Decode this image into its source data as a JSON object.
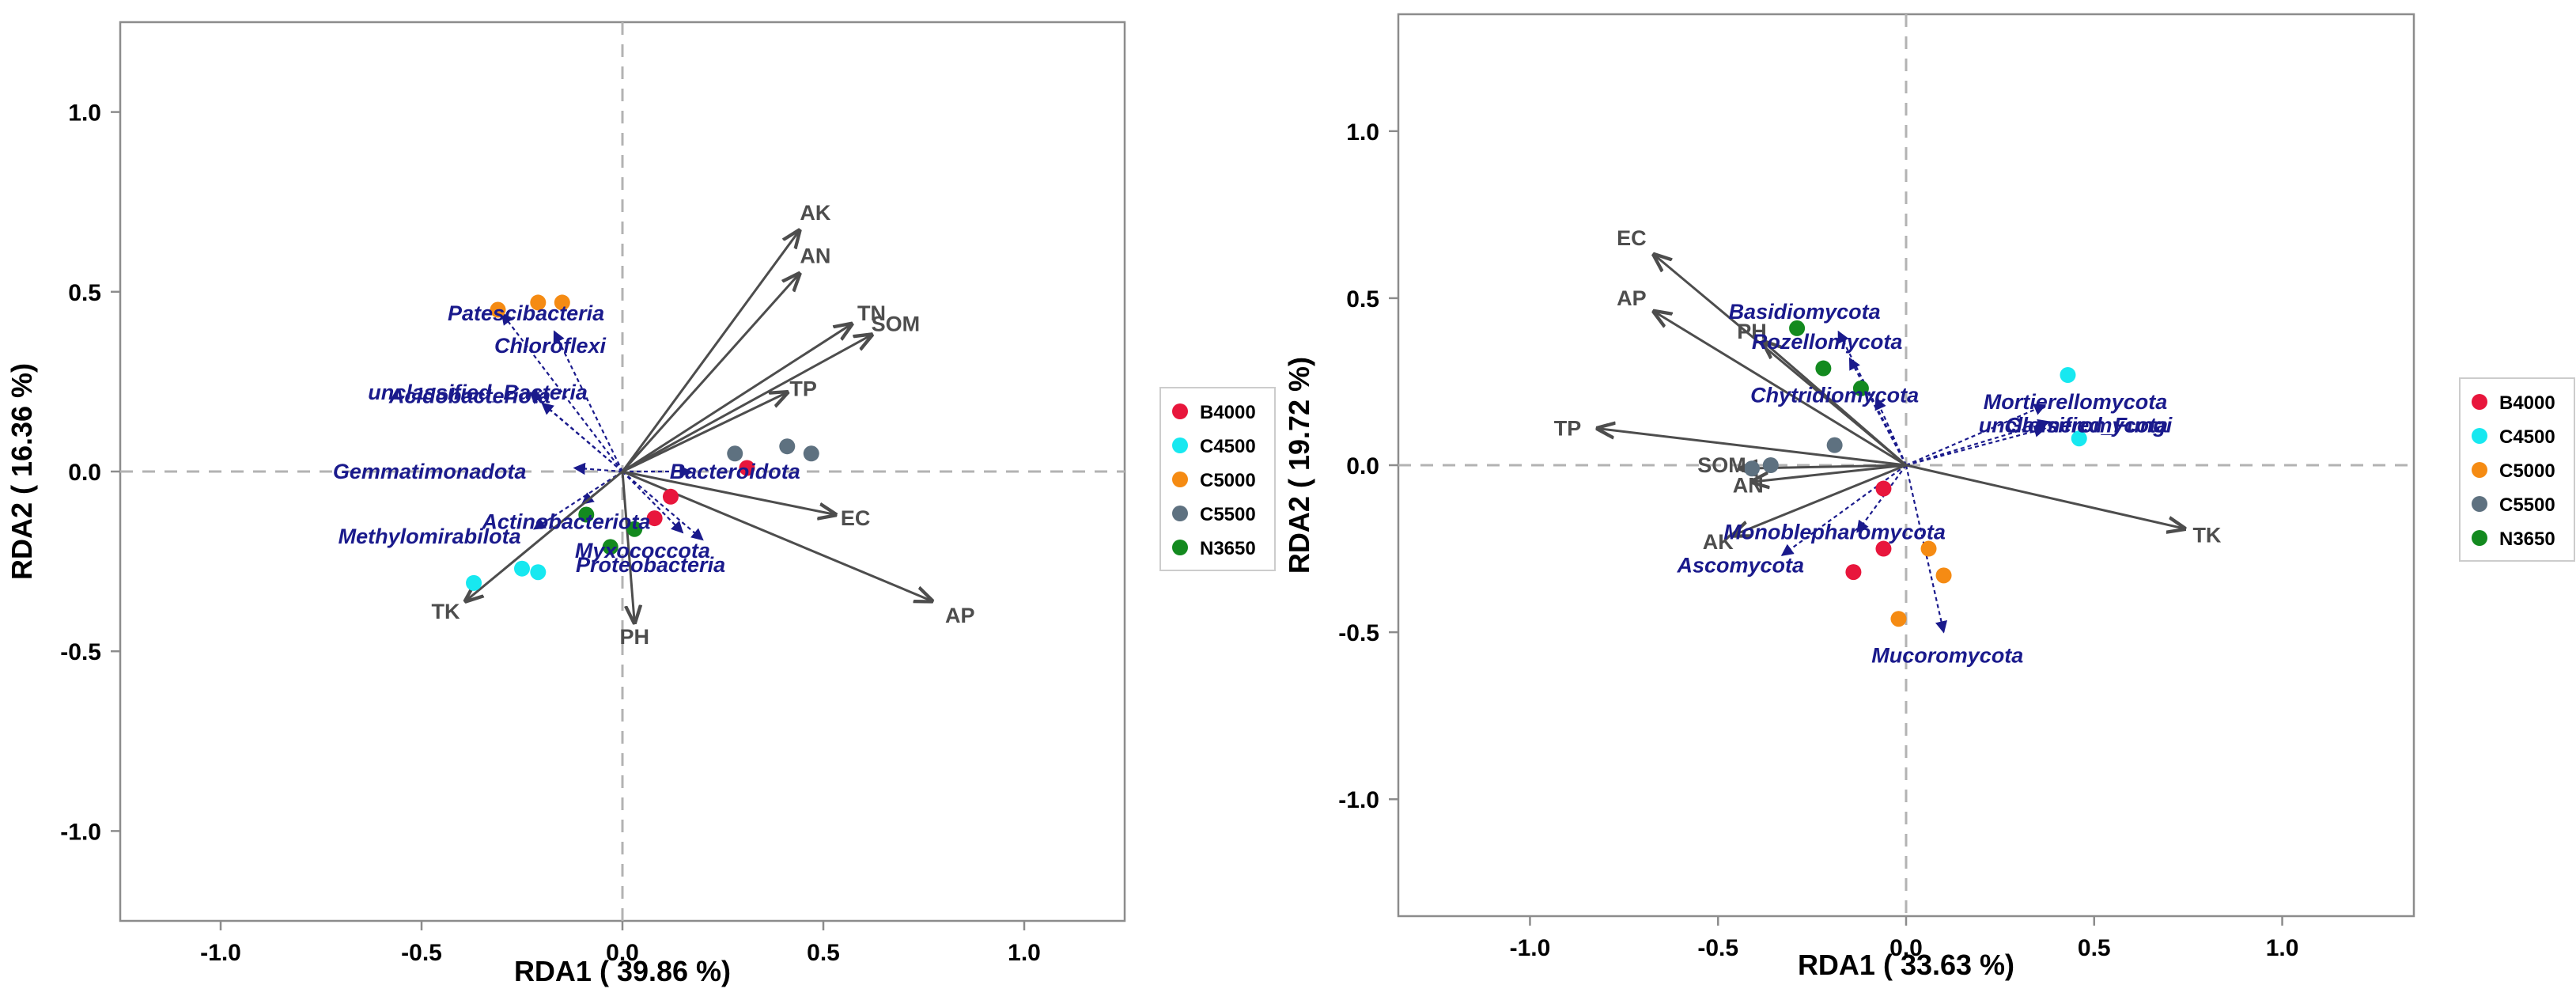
{
  "colors": {
    "groups": {
      "B4000": "#e8163c",
      "C4500": "#17e8f0",
      "C5000": "#f58b13",
      "C5500": "#5e7180",
      "N3650": "#138a1f"
    },
    "env_arrow": "#4d4d4d",
    "taxa_arrow": "#1a1a8c",
    "zero_line": "#b3b3b3",
    "frame": "#8c8c8c"
  },
  "chart_data": [
    {
      "type": "scatter",
      "subtype": "rda-biplot",
      "title": "",
      "xlabel": "RDA1 ( 39.86 %)",
      "ylabel": "RDA2 ( 16.36 %)",
      "xlim": [
        -1.25,
        1.25
      ],
      "ylim": [
        -1.25,
        1.25
      ],
      "xticks": [
        "-1.0",
        "-0.5",
        "0.0",
        "0.5",
        "1.0"
      ],
      "yticks": [
        "-1.0",
        "-0.5",
        "0.0",
        "0.5",
        "1.0"
      ],
      "tick_values": [
        -1.0,
        -0.5,
        0.0,
        0.5,
        1.0
      ],
      "legend": [
        "B4000",
        "C4500",
        "C5000",
        "C5500",
        "N3650"
      ],
      "legend_position": "right",
      "points": [
        {
          "group": "B4000",
          "x": 0.12,
          "y": -0.07
        },
        {
          "group": "B4000",
          "x": 0.08,
          "y": -0.13
        },
        {
          "group": "B4000",
          "x": 0.31,
          "y": 0.01
        },
        {
          "group": "C4500",
          "x": -0.37,
          "y": -0.31
        },
        {
          "group": "C4500",
          "x": -0.25,
          "y": -0.27
        },
        {
          "group": "C4500",
          "x": -0.21,
          "y": -0.28
        },
        {
          "group": "C5000",
          "x": -0.31,
          "y": 0.45
        },
        {
          "group": "C5000",
          "x": -0.21,
          "y": 0.47
        },
        {
          "group": "C5000",
          "x": -0.15,
          "y": 0.47
        },
        {
          "group": "C5500",
          "x": 0.28,
          "y": 0.05
        },
        {
          "group": "C5500",
          "x": 0.41,
          "y": 0.07
        },
        {
          "group": "C5500",
          "x": 0.47,
          "y": 0.05
        },
        {
          "group": "N3650",
          "x": -0.09,
          "y": -0.12
        },
        {
          "group": "N3650",
          "x": -0.03,
          "y": -0.21
        },
        {
          "group": "N3650",
          "x": 0.03,
          "y": -0.16
        }
      ],
      "env_arrows": [
        {
          "label": "AK",
          "x": 0.44,
          "y": 0.67,
          "lx": 0.48,
          "ly": 0.72
        },
        {
          "label": "AN",
          "x": 0.44,
          "y": 0.55,
          "lx": 0.48,
          "ly": 0.6
        },
        {
          "label": "TN",
          "x": 0.57,
          "y": 0.41,
          "lx": 0.62,
          "ly": 0.44
        },
        {
          "label": "SOM",
          "x": 0.62,
          "y": 0.38,
          "lx": 0.68,
          "ly": 0.41
        },
        {
          "label": "TP",
          "x": 0.41,
          "y": 0.22,
          "lx": 0.45,
          "ly": 0.23
        },
        {
          "label": "EC",
          "x": 0.53,
          "y": -0.12,
          "lx": 0.58,
          "ly": -0.13
        },
        {
          "label": "AP",
          "x": 0.77,
          "y": -0.36,
          "lx": 0.84,
          "ly": -0.4
        },
        {
          "label": "PH",
          "x": 0.03,
          "y": -0.42,
          "lx": 0.03,
          "ly": -0.46
        },
        {
          "label": "TK",
          "x": -0.39,
          "y": -0.36,
          "lx": -0.44,
          "ly": -0.39
        }
      ],
      "taxa_arrows": [
        {
          "label": "Patescibacteria",
          "x": -0.3,
          "y": 0.44,
          "lx": -0.24,
          "ly": 0.44
        },
        {
          "label": "Chloroflexi",
          "x": -0.17,
          "y": 0.39,
          "lx": -0.18,
          "ly": 0.35
        },
        {
          "label": "unclassified_Bacteria",
          "x": -0.23,
          "y": 0.22,
          "lx": -0.36,
          "ly": 0.22
        },
        {
          "label": "Acidobacteriota",
          "x": -0.2,
          "y": 0.19,
          "lx": -0.38,
          "ly": 0.21
        },
        {
          "label": "Gemmatimonadota",
          "x": -0.12,
          "y": 0.01,
          "lx": -0.48,
          "ly": 0.0
        },
        {
          "label": "Bacteroidota",
          "x": 0.17,
          "y": 0.0,
          "lx": 0.28,
          "ly": 0.0
        },
        {
          "label": "Actinobacteriota",
          "x": -0.1,
          "y": -0.09,
          "lx": -0.14,
          "ly": -0.14
        },
        {
          "label": "Methylomirabilota",
          "x": -0.22,
          "y": -0.16,
          "lx": -0.48,
          "ly": -0.18
        },
        {
          "label": "Myxococcota",
          "x": 0.15,
          "y": -0.17,
          "lx": 0.05,
          "ly": -0.22
        },
        {
          "label": "Proteobacteria",
          "x": 0.2,
          "y": -0.19,
          "lx": 0.07,
          "ly": -0.26
        }
      ]
    },
    {
      "type": "scatter",
      "subtype": "rda-biplot",
      "title": "",
      "xlabel": "RDA1 ( 33.63 %)",
      "ylabel": "RDA2 ( 19.72 %)",
      "xlim": [
        -1.35,
        1.35
      ],
      "ylim": [
        -1.35,
        1.35
      ],
      "xticks": [
        "-1.0",
        "-0.5",
        "0.0",
        "0.5",
        "1.0"
      ],
      "yticks": [
        "-1.0",
        "-0.5",
        "0.0",
        "0.5",
        "1.0"
      ],
      "tick_values": [
        -1.0,
        -0.5,
        0.0,
        0.5,
        1.0
      ],
      "legend": [
        "B4000",
        "C4500",
        "C5000",
        "C5500",
        "N3650"
      ],
      "legend_position": "right",
      "points": [
        {
          "group": "B4000",
          "x": -0.06,
          "y": -0.07
        },
        {
          "group": "B4000",
          "x": -0.06,
          "y": -0.25
        },
        {
          "group": "B4000",
          "x": -0.14,
          "y": -0.32
        },
        {
          "group": "C4500",
          "x": 0.43,
          "y": 0.27
        },
        {
          "group": "C4500",
          "x": 0.46,
          "y": 0.08
        },
        {
          "group": "C5000",
          "x": 0.06,
          "y": -0.25
        },
        {
          "group": "C5000",
          "x": 0.1,
          "y": -0.33
        },
        {
          "group": "C5000",
          "x": -0.02,
          "y": -0.46
        },
        {
          "group": "C5500",
          "x": -0.36,
          "y": 0.0
        },
        {
          "group": "C5500",
          "x": -0.41,
          "y": -0.01
        },
        {
          "group": "C5500",
          "x": -0.19,
          "y": 0.06
        },
        {
          "group": "N3650",
          "x": -0.29,
          "y": 0.41
        },
        {
          "group": "N3650",
          "x": -0.22,
          "y": 0.29
        },
        {
          "group": "N3650",
          "x": -0.12,
          "y": 0.23
        }
      ],
      "env_arrows": [
        {
          "label": "EC",
          "x": -0.67,
          "y": 0.63,
          "lx": -0.73,
          "ly": 0.68
        },
        {
          "label": "AP",
          "x": -0.67,
          "y": 0.46,
          "lx": -0.73,
          "ly": 0.5
        },
        {
          "label": "PH",
          "x": -0.38,
          "y": 0.37,
          "lx": -0.41,
          "ly": 0.4
        },
        {
          "label": "TP",
          "x": -0.82,
          "y": 0.11,
          "lx": -0.9,
          "ly": 0.11
        },
        {
          "label": "SOM",
          "x": -0.44,
          "y": -0.01,
          "lx": -0.49,
          "ly": -0.0
        },
        {
          "label": "AN",
          "x": -0.41,
          "y": -0.05,
          "lx": -0.42,
          "ly": -0.06
        },
        {
          "label": "AK",
          "x": -0.46,
          "y": -0.21,
          "lx": -0.5,
          "ly": -0.23
        },
        {
          "label": "TK",
          "x": 0.74,
          "y": -0.19,
          "lx": 0.8,
          "ly": -0.21
        }
      ],
      "taxa_arrows": [
        {
          "label": "Basidiomycota",
          "x": -0.18,
          "y": 0.4,
          "lx": -0.27,
          "ly": 0.46
        },
        {
          "label": "Rozellomycota",
          "x": -0.15,
          "y": 0.32,
          "lx": -0.21,
          "ly": 0.37
        },
        {
          "label": "Chytridiomycota",
          "x": -0.08,
          "y": 0.2,
          "lx": -0.19,
          "ly": 0.21
        },
        {
          "label": "Mortierellomycota",
          "x": 0.37,
          "y": 0.18,
          "lx": 0.45,
          "ly": 0.19
        },
        {
          "label": "unclassified_Fungi",
          "x": 0.38,
          "y": 0.13,
          "lx": 0.45,
          "ly": 0.12
        },
        {
          "label": "Glomeromycota",
          "x": 0.37,
          "y": 0.11,
          "lx": 0.48,
          "ly": 0.12
        },
        {
          "label": "Monoblepharomycota",
          "x": -0.13,
          "y": -0.2,
          "lx": -0.19,
          "ly": -0.2
        },
        {
          "label": "Ascomycota",
          "x": -0.33,
          "y": -0.27,
          "lx": -0.44,
          "ly": -0.3
        },
        {
          "label": "Mucoromycota",
          "x": 0.1,
          "y": -0.5,
          "lx": 0.11,
          "ly": -0.57
        }
      ]
    }
  ]
}
